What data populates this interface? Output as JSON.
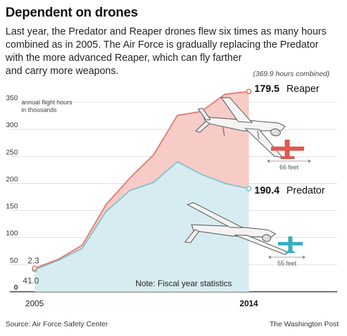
{
  "header": {
    "title": "Dependent on drones",
    "dek_lines": [
      "Last year, the Predator and Reaper drones flew six times as many hours",
      "combined as in 2005. The Air Force is gradually replacing the Predator",
      "with the more advanced Reaper, which can fly farther",
      "and carry more weapons."
    ]
  },
  "chart_data": {
    "type": "area",
    "x": [
      2005,
      2006,
      2007,
      2008,
      2009,
      2010,
      2011,
      2012,
      2013,
      2014
    ],
    "series": [
      {
        "name": "Predator",
        "values": [
          41.0,
          58,
          80,
          148,
          187,
          202,
          240,
          217,
          200,
          190.4
        ],
        "color": "#7fc2cf",
        "fill": "#d7ecf1"
      },
      {
        "name": "Reaper",
        "values": [
          2.3,
          2,
          6,
          13,
          23,
          51,
          86,
          116,
          165,
          179.5
        ],
        "color": "#e07a70",
        "fill": "#f7cbc6"
      }
    ],
    "stacked": true,
    "ylim": [
      0,
      370
    ],
    "yticks": [
      0,
      50,
      100,
      150,
      200,
      250,
      300,
      350
    ],
    "ylabel_lines": [
      "annual flight hours",
      "in thousands"
    ],
    "xtick_labels": [
      "2005",
      "2014"
    ],
    "start_labels": [
      "2.3",
      "41.0"
    ],
    "end_labels": [
      {
        "value": "179.5",
        "name": "Reaper"
      },
      {
        "value": "190.4",
        "name": "Predator"
      }
    ],
    "combined_note": "(369.9 hours combined)",
    "note": "Note: Fiscal year statistics",
    "reaper_span_label": "66 feet",
    "predator_span_label": "55 feet",
    "grid": true
  },
  "footer": {
    "source": "Source: Air Force Safety Center",
    "credit": "The Washington Post"
  },
  "colors": {
    "reaper_line": "#e07a70",
    "reaper_fill": "#f7cbc6",
    "predator_line": "#7fc2cf",
    "predator_fill": "#d7ecf1",
    "reaper_icon": "#e05a4c",
    "predator_icon": "#3ab0bf",
    "grid": "#cccccc"
  },
  "icons": [
    "reaper-drone-illustration",
    "predator-drone-illustration",
    "reaper-silhouette-icon",
    "predator-silhouette-icon"
  ]
}
